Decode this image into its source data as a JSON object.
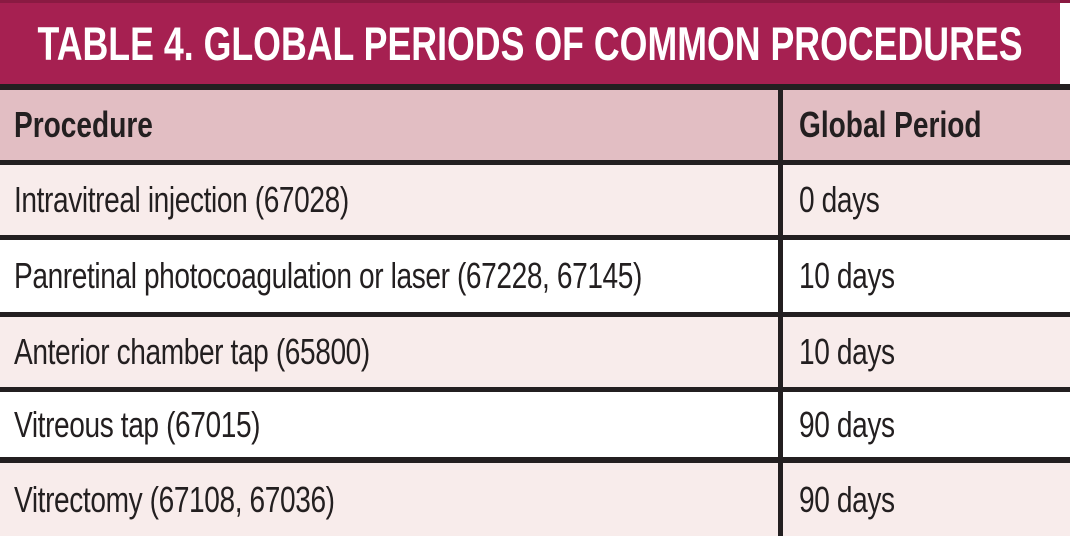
{
  "chart_data": {
    "type": "table",
    "title": "TABLE 4. GLOBAL PERIODS OF COMMON PROCEDURES",
    "columns": [
      "Procedure",
      "Global Period"
    ],
    "rows": [
      [
        "Intravitreal injection (67028)",
        "0 days"
      ],
      [
        "Panretinal photocoagulation or laser (67228, 67145)",
        "10 days"
      ],
      [
        "Anterior chamber tap (65800)",
        "10 days"
      ],
      [
        "Vitreous tap (67015)",
        "90 days"
      ],
      [
        "Vitrectomy (67108, 67036)",
        "90 days"
      ]
    ]
  },
  "colors": {
    "title_band_bg": "#A62051",
    "title_band_top_edge": "#8A1A42",
    "title_text": "#FFFFFF",
    "column_header_bg": "#E2BEC3",
    "row_stripe_bg": "#F8ECEB",
    "row_plain_bg": "#FFFFFF",
    "border": "#231F20",
    "body_text": "#231F20"
  }
}
